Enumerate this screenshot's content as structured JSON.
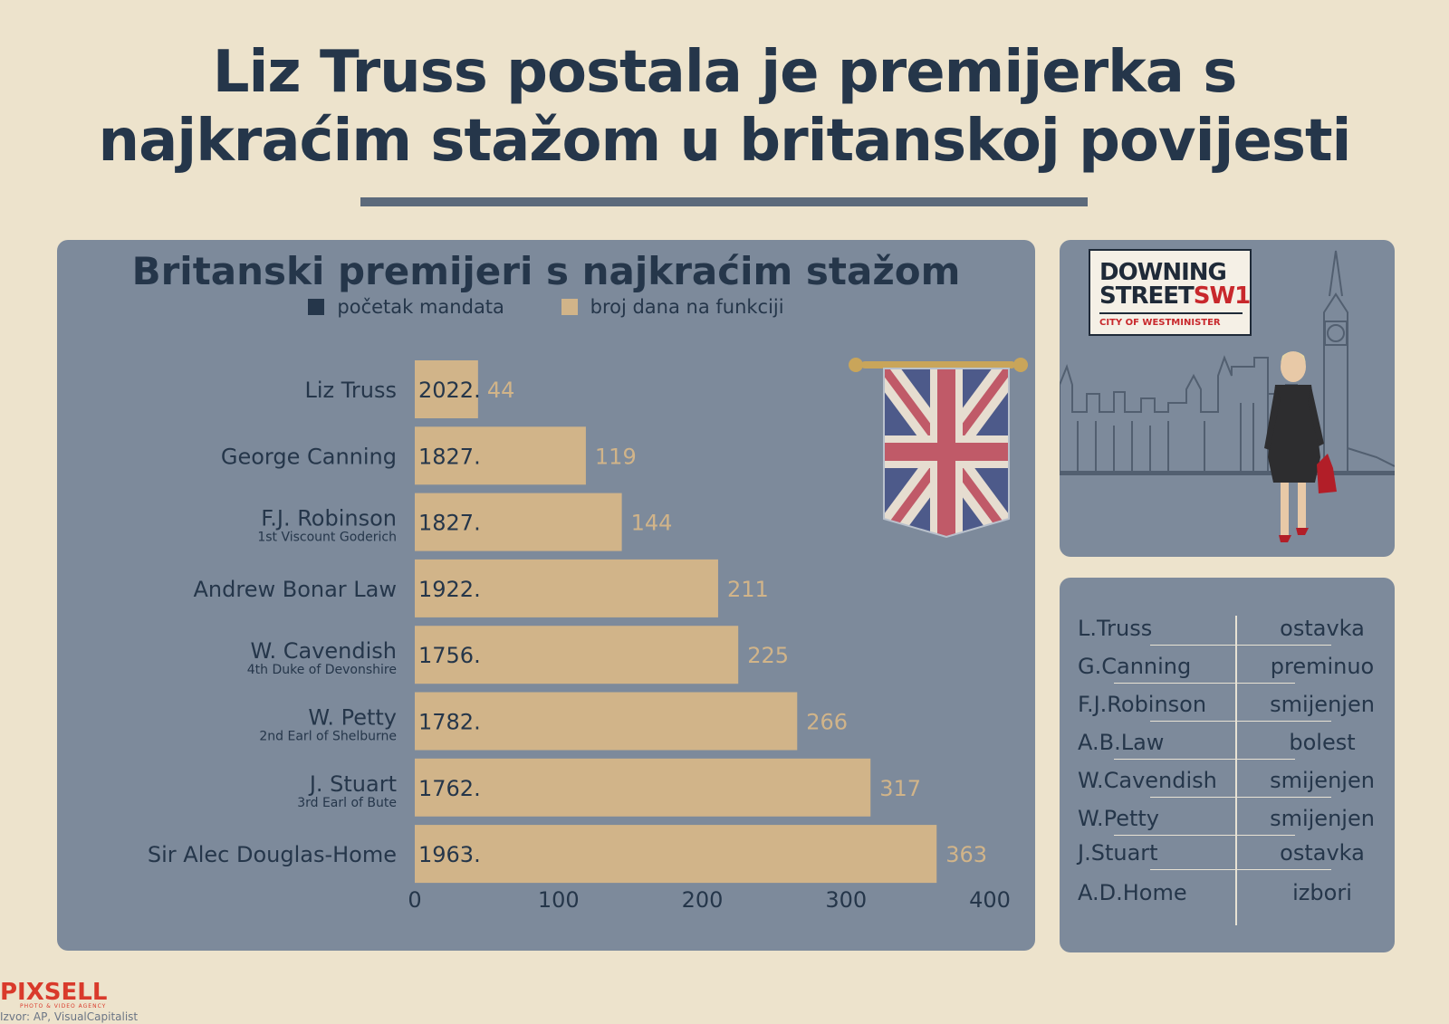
{
  "header": {
    "title_line1": "Liz Truss postala je premijerka s",
    "title_line2": "najkraćim stažom u britanskoj povijesti"
  },
  "legend": {
    "start_label": "početak mandata",
    "days_label": "broj dana na funkciji"
  },
  "chart_data": {
    "type": "bar",
    "orientation": "horizontal",
    "title": "Britanski premijeri s najkraćim stažom",
    "categories": [
      "Liz Truss",
      "George Canning",
      "F.J. Robinson",
      "Andrew Bonar Law",
      "W. Cavendish",
      "W. Petty",
      "J. Stuart",
      "Sir Alec Douglas-Home"
    ],
    "subtitles": [
      "",
      "",
      "1st Viscount Goderich",
      "",
      "4th Duke of Devonshire",
      "2nd Earl of Shelburne",
      "3rd Earl of Bute",
      ""
    ],
    "start_years": [
      "2022.",
      "1827.",
      "1827.",
      "1922.",
      "1756.",
      "1782.",
      "1762.",
      "1963."
    ],
    "values": [
      44,
      119,
      144,
      211,
      225,
      266,
      317,
      363
    ],
    "xlim": [
      0,
      400
    ],
    "xticks": [
      0,
      100,
      200,
      300,
      400
    ],
    "grid": false,
    "legend_position": "top-center",
    "colors": {
      "bar": "#d1b489",
      "value_label": "#d1b489",
      "label": "#25364a"
    }
  },
  "photo": {
    "sign_line1": "DOWNING",
    "sign_line2": "STREET",
    "sign_sw1": "SW1",
    "sign_sub": "CITY OF WESTMINISTER"
  },
  "exit_table": {
    "rows": [
      {
        "name": "L.Truss",
        "reason": "ostavka"
      },
      {
        "name": "G.Canning",
        "reason": "preminuo"
      },
      {
        "name": "F.J.Robinson",
        "reason": "smijenjen"
      },
      {
        "name": "A.B.Law",
        "reason": "bolest"
      },
      {
        "name": "W.Cavendish",
        "reason": "smijenjen"
      },
      {
        "name": "W.Petty",
        "reason": "smijenjen"
      },
      {
        "name": "J.Stuart",
        "reason": "ostavka"
      },
      {
        "name": "A.D.Home",
        "reason": "izbori"
      }
    ]
  },
  "footer": {
    "brand": "PIXSELL",
    "brand_sub": "PHOTO & VIDEO AGENCY",
    "source": "Izvor: AP, VisualCapitalist"
  },
  "colors": {
    "background": "#ede3cc",
    "panel": "#7d8a9b",
    "navy": "#25364a",
    "tan": "#d1b489",
    "brand_red": "#d93a2b"
  }
}
